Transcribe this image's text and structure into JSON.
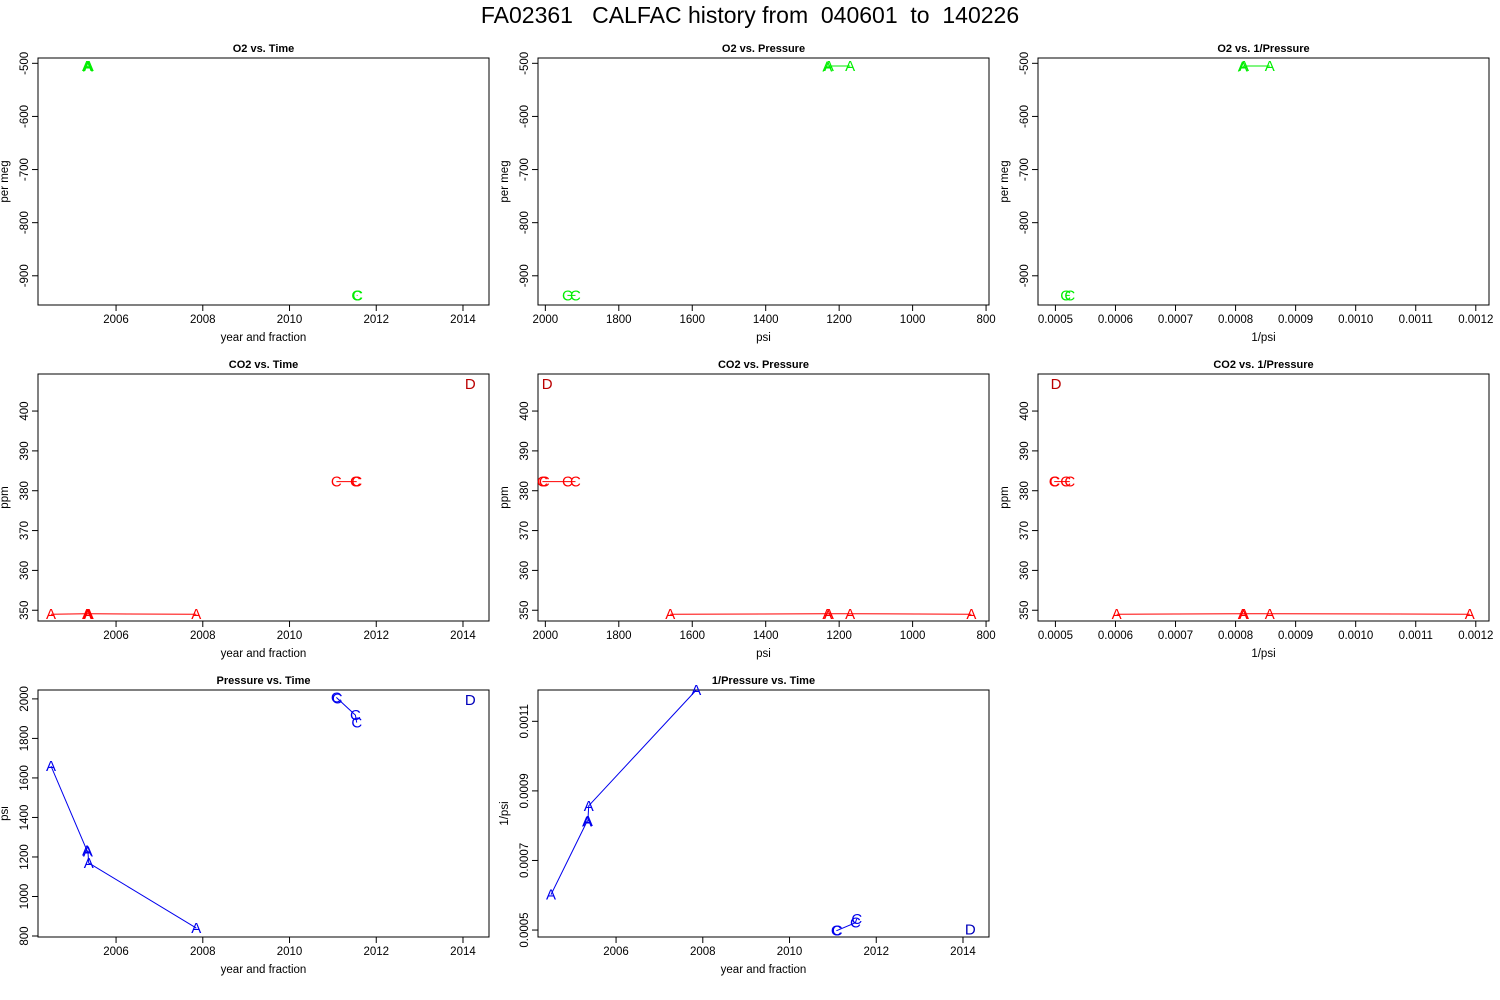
{
  "page_title": "FA02361   CALFAC history from  040601  to  140226",
  "chart_data": [
    {
      "type": "line",
      "title": "O2 vs. Time",
      "xlabel": "year and fraction",
      "ylabel": "per meg",
      "xlim": [
        2004.2,
        2014.6
      ],
      "ylim": [
        -955,
        -490
      ],
      "xreverse": false,
      "xticks": [
        2006,
        2008,
        2010,
        2012,
        2014
      ],
      "yticks": [
        -500,
        -600,
        -700,
        -800,
        -900
      ],
      "xtick_labels": [
        "2006",
        "2008",
        "2010",
        "2012",
        "2014"
      ],
      "ytick_labels": [
        "-500",
        "-600",
        "-700",
        "-800",
        "-900"
      ],
      "color": "#00ee00",
      "series": [
        {
          "label": "A",
          "x": [
            2005.33,
            2005.35,
            2005.37
          ],
          "y": [
            -505,
            -506,
            -505
          ]
        },
        {
          "label": "C",
          "x": [
            2011.55,
            2011.57
          ],
          "y": [
            -937,
            -937
          ]
        }
      ]
    },
    {
      "type": "line",
      "title": "O2 vs. Pressure",
      "xlabel": "psi",
      "ylabel": "per meg",
      "xlim": [
        2020,
        792
      ],
      "ylim": [
        -955,
        -490
      ],
      "xreverse": true,
      "xticks": [
        2000,
        1800,
        1600,
        1400,
        1200,
        1000,
        800
      ],
      "yticks": [
        -500,
        -600,
        -700,
        -800,
        -900
      ],
      "xtick_labels": [
        "2000",
        "1800",
        "1600",
        "1400",
        "1200",
        "1000",
        "800"
      ],
      "ytick_labels": [
        "-500",
        "-600",
        "-700",
        "-800",
        "-900"
      ],
      "color": "#00ee00",
      "series": [
        {
          "label": "A",
          "x": [
            1232,
            1228,
            1170
          ],
          "y": [
            -506,
            -505,
            -505
          ]
        },
        {
          "label": "C",
          "x": [
            1940,
            1918
          ],
          "y": [
            -937,
            -937
          ]
        }
      ]
    },
    {
      "type": "line",
      "title": "O2 vs. 1/Pressure",
      "xlabel": "1/psi",
      "ylabel": "per meg",
      "xlim": [
        0.000471,
        0.001222
      ],
      "ylim": [
        -955,
        -490
      ],
      "xreverse": false,
      "xticks": [
        0.0005,
        0.0006,
        0.0007,
        0.0008,
        0.0009,
        0.001,
        0.0011,
        0.0012
      ],
      "yticks": [
        -500,
        -600,
        -700,
        -800,
        -900
      ],
      "xtick_labels": [
        "0.0005",
        "0.0006",
        "0.0007",
        "0.0008",
        "0.0009",
        "0.0010",
        "0.0011",
        "0.0012"
      ],
      "ytick_labels": [
        "-500",
        "-600",
        "-700",
        "-800",
        "-900"
      ],
      "color": "#00ee00",
      "series": [
        {
          "label": "A",
          "x": [
            0.000812,
            0.000814,
            0.000857
          ],
          "y": [
            -506,
            -505,
            -505
          ]
        },
        {
          "label": "C",
          "x": [
            0.000517,
            0.000524
          ],
          "y": [
            -937,
            -937
          ]
        }
      ]
    },
    {
      "type": "line",
      "title": "CO2 vs. Time",
      "xlabel": "year and fraction",
      "ylabel": "ppm",
      "xlim": [
        2004.2,
        2014.6
      ],
      "ylim": [
        347.3,
        409.3
      ],
      "xreverse": false,
      "xticks": [
        2006,
        2008,
        2010,
        2012,
        2014
      ],
      "yticks": [
        350,
        360,
        370,
        380,
        390,
        400
      ],
      "xtick_labels": [
        "2006",
        "2008",
        "2010",
        "2012",
        "2014"
      ],
      "ytick_labels": [
        "350",
        "360",
        "370",
        "380",
        "390",
        "400"
      ],
      "color": "#ff0000",
      "series": [
        {
          "label": "A",
          "x": [
            2004.5,
            2005.33,
            2005.35,
            2005.37,
            2007.85
          ],
          "y": [
            349.0,
            349.1,
            349.1,
            349.1,
            349.0
          ]
        },
        {
          "label": "C",
          "x": [
            2011.08,
            2011.52,
            2011.55
          ],
          "y": [
            382.3,
            382.3,
            382.3
          ]
        },
        {
          "label": "D",
          "x": [
            2014.17
          ],
          "y": [
            406.8
          ],
          "color": "#bb0000"
        }
      ]
    },
    {
      "type": "line",
      "title": "CO2 vs. Pressure",
      "xlabel": "psi",
      "ylabel": "ppm",
      "xlim": [
        2020,
        792
      ],
      "ylim": [
        347.3,
        409.3
      ],
      "xreverse": true,
      "xticks": [
        2000,
        1800,
        1600,
        1400,
        1200,
        1000,
        800
      ],
      "yticks": [
        350,
        360,
        370,
        380,
        390,
        400
      ],
      "xtick_labels": [
        "2000",
        "1800",
        "1600",
        "1400",
        "1200",
        "1000",
        "800"
      ],
      "ytick_labels": [
        "350",
        "360",
        "370",
        "380",
        "390",
        "400"
      ],
      "color": "#ff0000",
      "series": [
        {
          "label": "A",
          "x": [
            1660,
            1232,
            1228,
            1170,
            840
          ],
          "y": [
            349.0,
            349.1,
            349.1,
            349.1,
            349.0
          ]
        },
        {
          "label": "C",
          "x": [
            2008,
            2003,
            1940,
            1918
          ],
          "y": [
            382.3,
            382.3,
            382.3,
            382.3
          ]
        },
        {
          "label": "D",
          "x": [
            1995
          ],
          "y": [
            406.8
          ],
          "color": "#bb0000"
        }
      ]
    },
    {
      "type": "line",
      "title": "CO2 vs. 1/Pressure",
      "xlabel": "1/psi",
      "ylabel": "ppm",
      "xlim": [
        0.000471,
        0.001222
      ],
      "ylim": [
        347.3,
        409.3
      ],
      "xreverse": false,
      "xticks": [
        0.0005,
        0.0006,
        0.0007,
        0.0008,
        0.0009,
        0.001,
        0.0011,
        0.0012
      ],
      "yticks": [
        350,
        360,
        370,
        380,
        390,
        400
      ],
      "xtick_labels": [
        "0.0005",
        "0.0006",
        "0.0007",
        "0.0008",
        "0.0009",
        "0.0010",
        "0.0011",
        "0.0012"
      ],
      "ytick_labels": [
        "350",
        "360",
        "370",
        "380",
        "390",
        "400"
      ],
      "color": "#ff0000",
      "series": [
        {
          "label": "A",
          "x": [
            0.000602,
            0.000812,
            0.000814,
            0.000857,
            0.00119
          ],
          "y": [
            349.0,
            349.1,
            349.1,
            349.1,
            349.0
          ]
        },
        {
          "label": "C",
          "x": [
            0.000498,
            0.000499,
            0.000517,
            0.000524
          ],
          "y": [
            382.3,
            382.3,
            382.3,
            382.3
          ]
        },
        {
          "label": "D",
          "x": [
            0.000501
          ],
          "y": [
            406.8
          ],
          "color": "#bb0000"
        }
      ]
    },
    {
      "type": "line",
      "title": "Pressure vs. Time",
      "xlabel": "year and fraction",
      "ylabel": "psi",
      "xlim": [
        2004.2,
        2014.6
      ],
      "ylim": [
        795,
        2045
      ],
      "xreverse": false,
      "xticks": [
        2006,
        2008,
        2010,
        2012,
        2014
      ],
      "yticks": [
        800,
        1000,
        1200,
        1400,
        1600,
        1800,
        2000
      ],
      "xtick_labels": [
        "2006",
        "2008",
        "2010",
        "2012",
        "2014"
      ],
      "ytick_labels": [
        "800",
        "1000",
        "1200",
        "1400",
        "1600",
        "1800",
        "2000"
      ],
      "color": "#0000ee",
      "series": [
        {
          "label": "A",
          "x": [
            2004.5,
            2005.33,
            2005.35,
            2005.37,
            2007.85
          ],
          "y": [
            1660,
            1232,
            1228,
            1170,
            840
          ]
        },
        {
          "label": "C",
          "x": [
            2011.08,
            2011.1,
            2011.52,
            2011.55
          ],
          "y": [
            2008,
            2003,
            1918,
            1880
          ]
        },
        {
          "label": "D",
          "x": [
            2014.17
          ],
          "y": [
            1995
          ],
          "color": "#0000bb"
        }
      ]
    },
    {
      "type": "line",
      "title": "1/Pressure vs. Time",
      "xlabel": "year and fraction",
      "ylabel": "1/psi",
      "xlim": [
        2004.2,
        2014.6
      ],
      "ylim": [
        0.00048,
        0.00119
      ],
      "xreverse": false,
      "xticks": [
        2006,
        2008,
        2010,
        2012,
        2014
      ],
      "yticks": [
        0.0005,
        0.0007,
        0.0009,
        0.0011
      ],
      "xtick_labels": [
        "2006",
        "2008",
        "2010",
        "2012",
        "2014"
      ],
      "ytick_labels": [
        "0.0005",
        "0.0007",
        "0.0009",
        "0.0011"
      ],
      "color": "#0000ee",
      "series": [
        {
          "label": "A",
          "x": [
            2004.5,
            2005.33,
            2005.35,
            2005.37,
            2007.85
          ],
          "y": [
            0.000602,
            0.000812,
            0.000814,
            0.000857,
            0.00119
          ]
        },
        {
          "label": "C",
          "x": [
            2011.08,
            2011.1,
            2011.52,
            2011.55
          ],
          "y": [
            0.000498,
            0.000499,
            0.000521,
            0.000532
          ]
        },
        {
          "label": "D",
          "x": [
            2014.17
          ],
          "y": [
            0.000501
          ],
          "color": "#0000bb"
        }
      ]
    }
  ]
}
